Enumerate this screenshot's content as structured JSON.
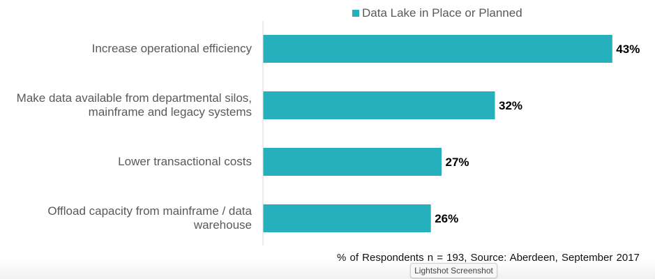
{
  "chart_data": {
    "type": "bar",
    "orientation": "horizontal",
    "categories": [
      "Increase operational efficiency",
      "Make data available from departmental silos, mainframe and legacy systems",
      "Lower transactional costs",
      "Offload capacity from mainframe / data warehouse"
    ],
    "category_lines": [
      [
        "Increase operational efficiency"
      ],
      [
        "Make data available from departmental silos,",
        "mainframe and legacy systems"
      ],
      [
        "Lower transactional costs"
      ],
      [
        "Offload capacity from mainframe / data",
        "warehouse"
      ]
    ],
    "series": [
      {
        "name": "Data Lake in Place or Planned",
        "values": [
          43,
          32,
          27,
          26
        ],
        "color": "#26b0bd"
      }
    ],
    "data_labels": [
      "43%",
      "32%",
      "27%",
      "26%"
    ],
    "xlim": [
      10.3,
      45
    ],
    "grid": false,
    "legend": "top",
    "footnote": "% of Respondents  n = 193, Source: Aberdeen,  September  2017"
  },
  "tooltip": "Lightshot Screenshot"
}
